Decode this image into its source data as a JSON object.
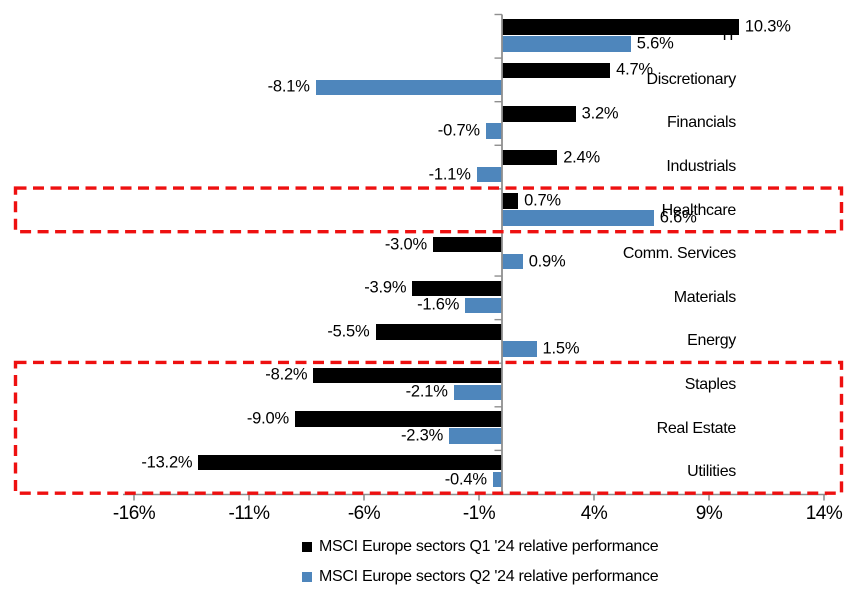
{
  "chart_data": {
    "type": "bar",
    "orientation": "horizontal",
    "title": "",
    "categories": [
      "IT",
      "Discretionary",
      "Financials",
      "Industrials",
      "Healthcare",
      "Comm. Services",
      "Materials",
      "Energy",
      "Staples",
      "Real Estate",
      "Utilities"
    ],
    "series": [
      {
        "name": "MSCI Europe sectors Q1 '24 relative performance",
        "color": "#000000",
        "values": [
          10.3,
          4.7,
          3.2,
          2.4,
          0.7,
          -3.0,
          -3.9,
          -5.5,
          -8.2,
          -9.0,
          -13.2
        ]
      },
      {
        "name": "MSCI Europe sectors Q2 '24 relative performance",
        "color": "#4E86BC",
        "values": [
          5.6,
          -8.1,
          -0.7,
          -1.1,
          6.6,
          0.9,
          -1.6,
          1.5,
          -2.1,
          -2.3,
          -0.4
        ]
      }
    ],
    "value_label_format": "one-decimal-percent",
    "x_axis": {
      "tick_labels": [
        "-16%",
        "-11%",
        "-6%",
        "-1%",
        "4%",
        "9%",
        "14%"
      ],
      "tick_values": [
        -16,
        -11,
        -6,
        -1,
        4,
        9,
        14
      ],
      "range": [
        -16.5,
        14.2
      ]
    },
    "grid": false,
    "legend_position": "bottom",
    "highlight_boxes": [
      {
        "rows": [
          "Healthcare"
        ],
        "start_row": 4,
        "end_row": 4
      },
      {
        "rows": [
          "Staples",
          "Real Estate",
          "Utilities"
        ],
        "start_row": 8,
        "end_row": 10
      }
    ],
    "colors": {
      "highlight": "#EE1010",
      "axis": "#8F8F8F",
      "text": "#000000"
    }
  }
}
